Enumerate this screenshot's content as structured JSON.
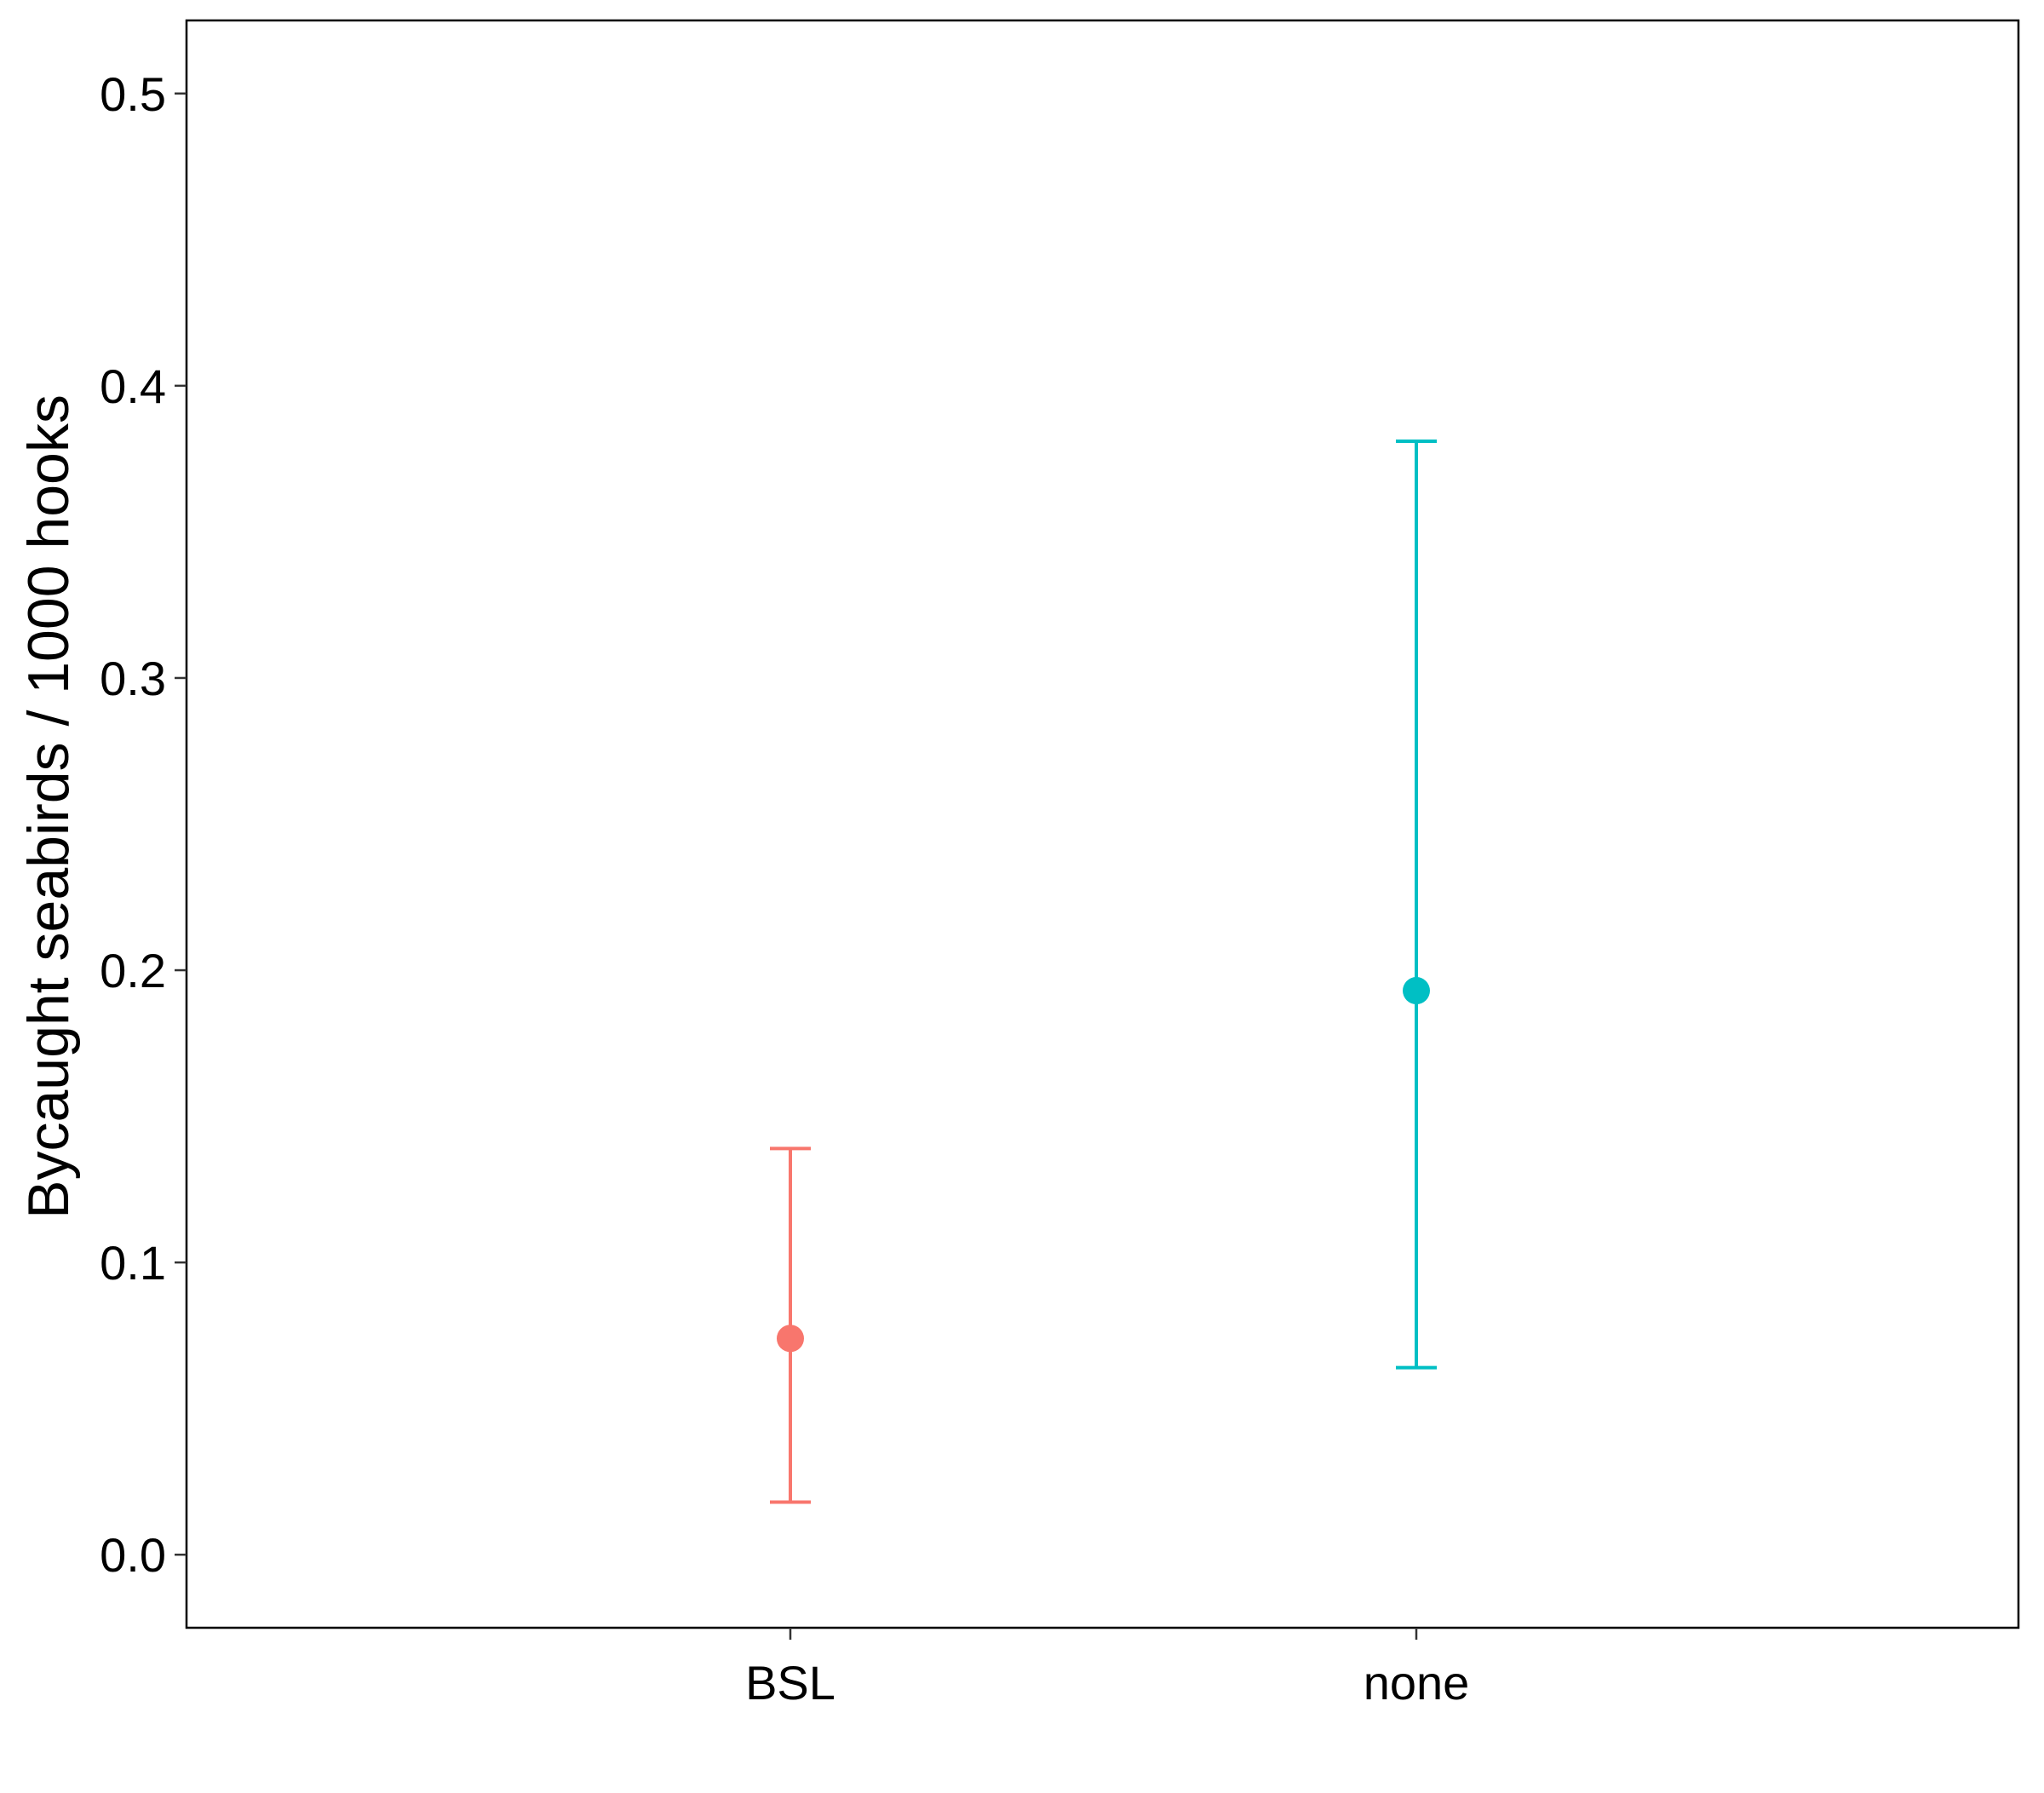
{
  "chart_data": {
    "type": "scatter",
    "title": "",
    "xlabel": "",
    "ylabel": "Bycaught seabirds / 1000 hooks",
    "categories": [
      "BSL",
      "none"
    ],
    "ylim": [
      -0.025,
      0.525
    ],
    "yticks": [
      "0.0",
      "0.1",
      "0.2",
      "0.3",
      "0.4",
      "0.5"
    ],
    "grid": false,
    "legend": "none",
    "points": [
      {
        "category": "BSL",
        "estimate": 0.074,
        "lower": 0.018,
        "upper": 0.139,
        "color": "#F8766D"
      },
      {
        "category": "none",
        "estimate": 0.193,
        "lower": 0.064,
        "upper": 0.381,
        "color": "#00BFC4"
      }
    ]
  }
}
